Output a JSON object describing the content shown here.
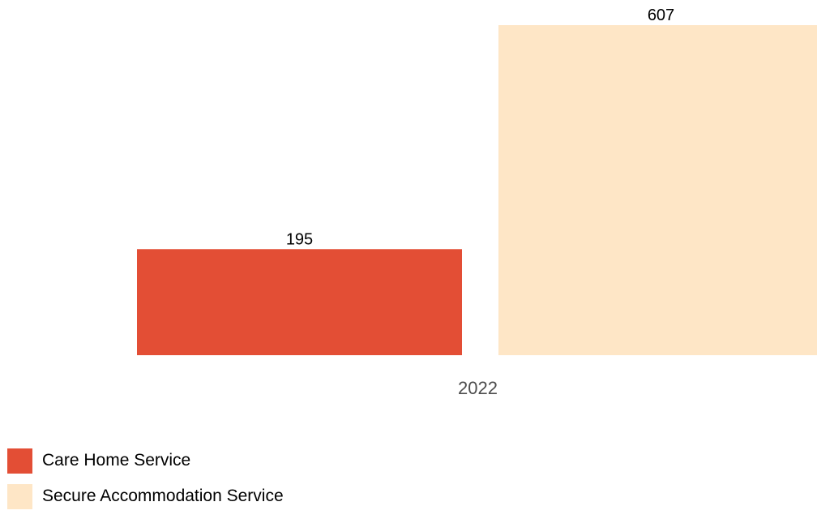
{
  "chart_data": {
    "type": "bar",
    "categories": [
      "2022"
    ],
    "series": [
      {
        "name": "Care Home Service",
        "values": [
          195
        ],
        "color": "#e34e35"
      },
      {
        "name": "Secure Accommodation Service",
        "values": [
          607
        ],
        "color": "#fee6c6"
      }
    ],
    "title": "",
    "xlabel": "",
    "ylabel": "",
    "ylim": [
      0,
      607
    ],
    "grid": false,
    "legend_position": "bottom-left"
  }
}
